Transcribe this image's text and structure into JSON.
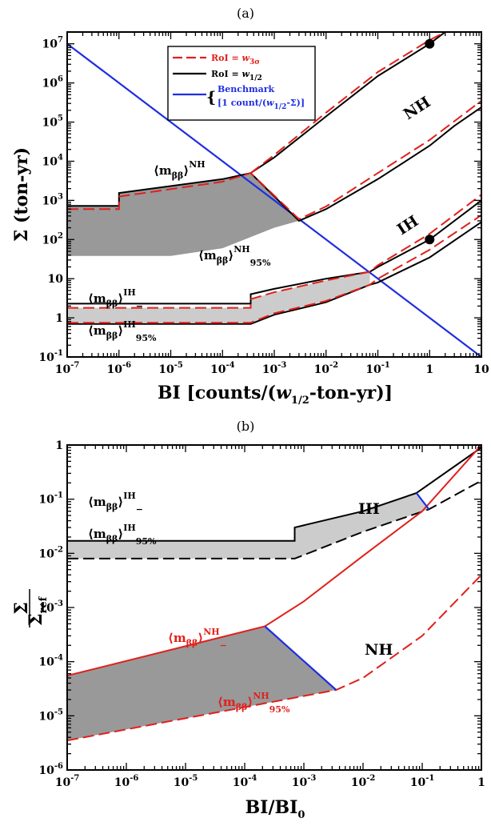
{
  "chart_data": [
    {
      "panel": "(a)",
      "type": "line",
      "xlabel": "BI [counts/(w_1/2-ton-yr)]",
      "ylabel": "Σ (ton-yr)",
      "xscale": "log",
      "yscale": "log",
      "xlim": [
        1e-07,
        10
      ],
      "ylim": [
        0.1,
        20000000.0
      ],
      "x_ticks": [
        "10^-7",
        "10^-6",
        "10^-5",
        "10^-4",
        "10^-3",
        "10^-2",
        "10^-1",
        "1",
        "10"
      ],
      "y_ticks": [
        "10^-1",
        "1",
        "10",
        "10^2",
        "10^3",
        "10^4",
        "10^5",
        "10^6",
        "10^7"
      ],
      "legend": {
        "placement": "top-center",
        "entries": [
          {
            "label": "RoI = w_3σ",
            "color": "#e0201b",
            "style": "dashed"
          },
          {
            "label": "RoI = w_1/2",
            "color": "#000000",
            "style": "solid"
          },
          {
            "label": "Benchmark [1 count/(w_1/2-Σ)]",
            "color": "#1f2ee0",
            "style": "solid"
          }
        ]
      },
      "annotations": [
        "NH",
        "IH",
        "⟨m_ββ⟩^NH",
        "⟨m_ββ⟩^NH_95%",
        "⟨m_ββ⟩^IH_−",
        "⟨m_ββ⟩^IH_95%"
      ],
      "series": [
        {
          "name": "Benchmark",
          "color": "#1f2ee0",
          "style": "solid",
          "points": [
            [
              1e-07,
              10000000.0
            ],
            [
              10,
              0.1
            ]
          ]
        },
        {
          "color": "#000000",
          "style": "solid",
          "points": [
            [
              1e-07,
              720
            ],
            [
              1e-06,
              720
            ],
            [
              1e-06,
              1550
            ],
            [
              0.0001,
              3500
            ],
            [
              0.00035,
              5000
            ],
            [
              0.003,
              300
            ],
            [
              0.01,
              600
            ],
            [
              0.1,
              3500
            ],
            [
              1,
              25000.0
            ],
            [
              1,
              25000.0
            ],
            [
              3,
              80000.0
            ],
            [
              10,
              240000.0
            ]
          ]
        },
        {
          "color": "#e0201b",
          "style": "dashed",
          "points": [
            [
              1e-07,
              600
            ],
            [
              1e-06,
              600
            ],
            [
              1e-06,
              1250
            ],
            [
              0.0001,
              3000
            ],
            [
              0.00035,
              5000
            ],
            [
              0.003,
              330
            ],
            [
              0.01,
              700
            ],
            [
              0.1,
              5000
            ],
            [
              1,
              35000.0
            ],
            [
              10,
              350000.0
            ]
          ]
        },
        {
          "color": "#000000",
          "style": "solid",
          "points": [
            [
              0.00035,
              5000
            ],
            [
              0.001,
              12500.0
            ],
            [
              0.01,
              140000.0
            ],
            [
              0.1,
              1500000.0
            ],
            [
              1,
              10000000.0
            ],
            [
              2,
              20000000.0
            ]
          ]
        },
        {
          "color": "#e0201b",
          "style": "dashed",
          "points": [
            [
              0.00035,
              5000
            ],
            [
              0.001,
              14500.0
            ],
            [
              0.01,
              175000.0
            ],
            [
              0.1,
              1900000.0
            ],
            [
              1,
              12500000.0
            ],
            [
              2,
              20000000.0
            ]
          ]
        },
        {
          "color": "#000000",
          "style": "solid",
          "points": [
            [
              1e-07,
              2.3
            ],
            [
              0.00035,
              2.3
            ],
            [
              0.00035,
              4
            ],
            [
              0.001,
              5.5
            ],
            [
              0.01,
              10
            ],
            [
              0.07,
              15
            ],
            [
              0.1,
              20
            ],
            [
              1,
              100
            ],
            [
              10,
              1000
            ]
          ]
        },
        {
          "color": "#e0201b",
          "style": "dashed",
          "points": [
            [
              1e-07,
              1.8
            ],
            [
              0.00035,
              1.8
            ],
            [
              0.00035,
              3
            ],
            [
              0.001,
              4.5
            ],
            [
              0.01,
              9
            ],
            [
              0.07,
              15
            ],
            [
              0.1,
              22
            ],
            [
              1,
              140
            ],
            [
              10,
              1400
            ]
          ]
        },
        {
          "color": "#000000",
          "style": "solid",
          "points": [
            [
              1e-07,
              0.7
            ],
            [
              0.00035,
              0.7
            ],
            [
              0.001,
              1.2
            ],
            [
              0.01,
              2.5
            ],
            [
              0.07,
              7
            ],
            [
              0.1,
              8
            ],
            [
              1,
              35
            ],
            [
              10,
              280
            ]
          ]
        },
        {
          "color": "#e0201b",
          "style": "dashed",
          "points": [
            [
              1e-07,
              0.75
            ],
            [
              0.00035,
              0.75
            ],
            [
              0.001,
              1.3
            ],
            [
              0.01,
              2.7
            ],
            [
              0.07,
              7
            ],
            [
              0.1,
              10
            ],
            [
              1,
              55
            ],
            [
              10,
              420
            ]
          ]
        }
      ],
      "markers": [
        [
          1,
          10000000.0
        ],
        [
          1,
          100
        ]
      ]
    },
    {
      "panel": "(b)",
      "type": "line",
      "xlabel": "BI/BI_0",
      "ylabel": "Σ/Σ_ref",
      "xscale": "log",
      "yscale": "log",
      "xlim": [
        1e-07,
        1
      ],
      "ylim": [
        1e-06,
        1
      ],
      "x_ticks": [
        "10^-7",
        "10^-6",
        "10^-5",
        "10^-4",
        "10^-3",
        "10^-2",
        "10^-1",
        "1"
      ],
      "y_ticks": [
        "10^-6",
        "10^-5",
        "10^-4",
        "10^-3",
        "10^-2",
        "10^-1",
        "1"
      ],
      "annotations": [
        "IH",
        "NH",
        "⟨m_ββ⟩^IH_−",
        "⟨m_ββ⟩^IH_95%",
        "⟨m_ββ⟩^NH_−",
        "⟨m_ββ⟩^NH_95%"
      ],
      "series": [
        {
          "color": "#000000",
          "style": "solid",
          "points": [
            [
              1e-07,
              0.017
            ],
            [
              0.0007,
              0.017
            ],
            [
              0.0007,
              0.03
            ],
            [
              0.01,
              0.06
            ],
            [
              0.08,
              0.13
            ],
            [
              1,
              0.9
            ]
          ]
        },
        {
          "color": "#000000",
          "style": "dashed",
          "points": [
            [
              1e-07,
              0.008
            ],
            [
              0.0007,
              0.008
            ],
            [
              0.01,
              0.025
            ],
            [
              0.13,
              0.065
            ],
            [
              1,
              0.22
            ]
          ]
        },
        {
          "color": "#e0201b",
          "style": "solid",
          "points": [
            [
              1e-07,
              5.5e-05
            ],
            [
              0.00022,
              0.00045
            ],
            [
              0.001,
              0.0013
            ],
            [
              0.01,
              0.009
            ],
            [
              0.1,
              0.06
            ],
            [
              1,
              1
            ]
          ]
        },
        {
          "color": "#e0201b",
          "style": "dashed",
          "points": [
            [
              1e-07,
              3.5e-06
            ],
            [
              0.0035,
              3e-05
            ],
            [
              0.01,
              5e-05
            ],
            [
              0.1,
              0.0003
            ],
            [
              1,
              0.004
            ]
          ]
        },
        {
          "color": "#1f2ee0",
          "style": "solid",
          "points": [
            [
              0.00022,
              0.00045
            ],
            [
              0.0035,
              3e-05
            ]
          ]
        },
        {
          "color": "#1f2ee0",
          "style": "solid",
          "points": [
            [
              0.08,
              0.13
            ],
            [
              0.13,
              0.065
            ]
          ]
        }
      ]
    }
  ],
  "colors": {
    "black": "#000000",
    "red": "#e0201b",
    "blue": "#1f2ee0",
    "dark_fill": "#999999",
    "light_fill": "#cccccc"
  }
}
